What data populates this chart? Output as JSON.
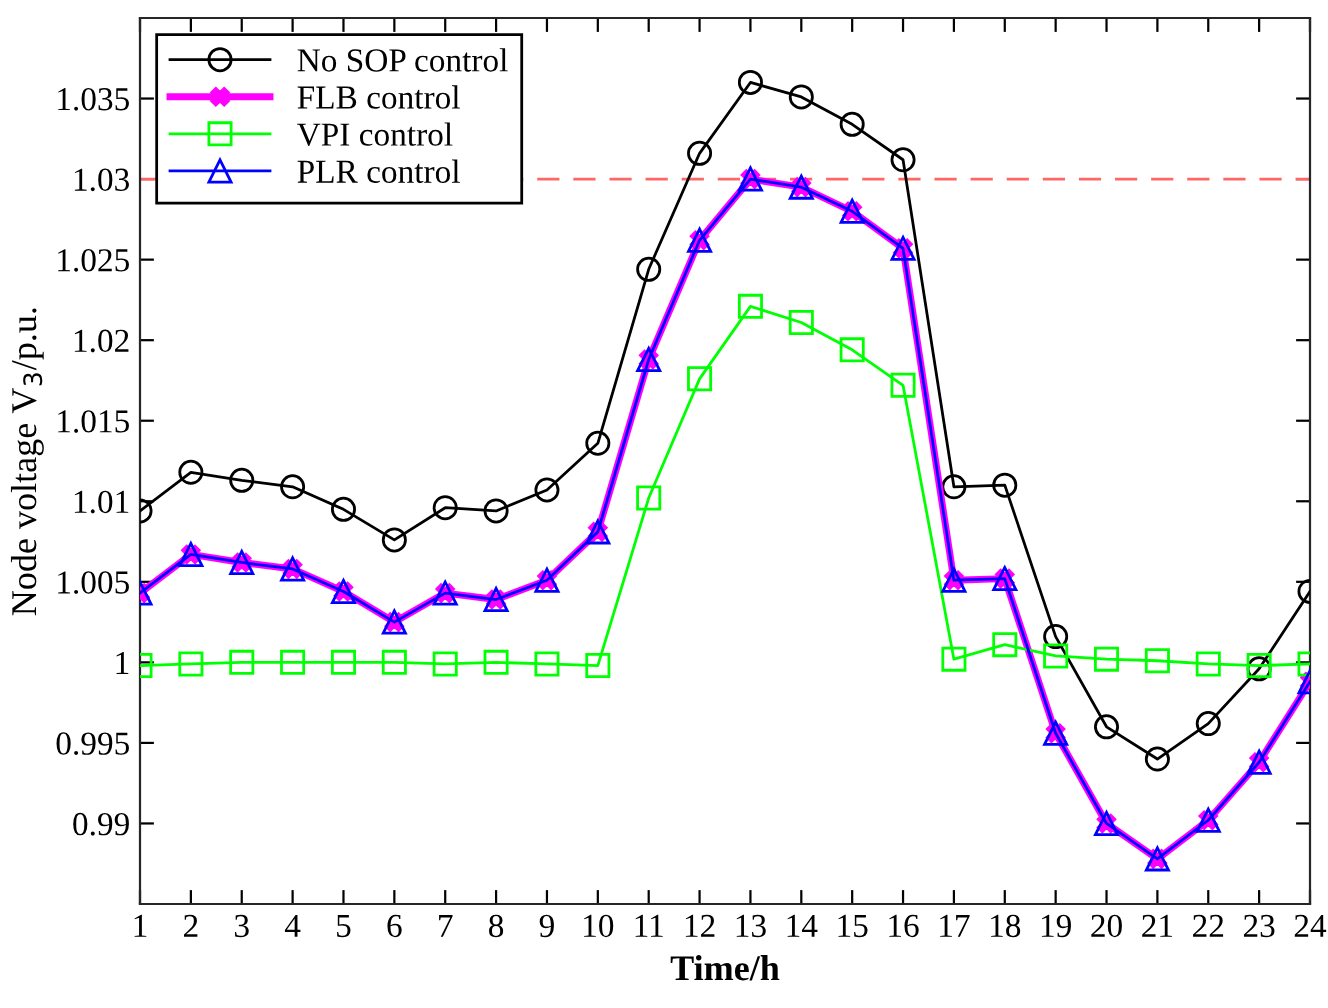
{
  "chart_data": {
    "type": "line",
    "xlabel": "Time/h",
    "ylabel": "Node voltage V$_{3}$/p.u.",
    "x": [
      1,
      2,
      3,
      4,
      5,
      6,
      7,
      8,
      9,
      10,
      11,
      12,
      13,
      14,
      15,
      16,
      17,
      18,
      19,
      20,
      21,
      22,
      23,
      24
    ],
    "xlim": [
      1,
      24
    ],
    "xticks": [
      1,
      2,
      3,
      4,
      5,
      6,
      7,
      8,
      9,
      10,
      11,
      12,
      13,
      14,
      15,
      16,
      17,
      18,
      19,
      20,
      21,
      22,
      23,
      24
    ],
    "ylim": [
      0.985,
      1.04
    ],
    "yticks": [
      0.99,
      0.995,
      1,
      1.005,
      1.01,
      1.015,
      1.02,
      1.025,
      1.03,
      1.035
    ],
    "grid": false,
    "legend": "top left",
    "line_style": "solid",
    "ref_lines": [
      {
        "axis": "y",
        "value": 1.03,
        "color": "#ff6666",
        "line_style": "dashed"
      }
    ],
    "series": [
      {
        "name": "No SOP control",
        "color": "#000000",
        "marker": "circle",
        "values": [
          1.0094,
          1.0118,
          1.0113,
          1.0109,
          1.0095,
          1.0076,
          1.0096,
          1.0094,
          1.0107,
          1.0136,
          1.0244,
          1.0316,
          1.036,
          1.0351,
          1.0334,
          1.0312,
          1.0109,
          1.011,
          1.0016,
          0.996,
          0.994,
          0.9962,
          0.9996,
          1.0044
        ]
      },
      {
        "name": "FLB control",
        "color": "#ff00ff",
        "marker": "cross",
        "values": [
          1.0043,
          1.0067,
          1.0062,
          1.0058,
          1.0044,
          1.0025,
          1.0043,
          1.0039,
          1.0051,
          1.0081,
          1.0188,
          1.0262,
          1.03,
          1.0295,
          1.028,
          1.0257,
          1.0051,
          1.0052,
          0.9956,
          0.99,
          0.9878,
          0.9902,
          0.9938,
          0.9988
        ]
      },
      {
        "name": "VPI control",
        "color": "#00ff00",
        "marker": "square",
        "values": [
          0.9998,
          0.9999,
          1.0,
          1.0,
          1.0,
          1.0,
          0.9999,
          1.0,
          0.9999,
          0.9998,
          1.0102,
          1.0176,
          1.0221,
          1.0211,
          1.0194,
          1.0172,
          1.0002,
          1.0011,
          1.0004,
          1.0002,
          1.0001,
          0.9999,
          0.9998,
          0.9999
        ]
      },
      {
        "name": "PLR control",
        "color": "#0000ff",
        "marker": "triangle",
        "values": [
          1.0043,
          1.0067,
          1.0062,
          1.0058,
          1.0044,
          1.0025,
          1.0043,
          1.0039,
          1.0051,
          1.0081,
          1.0188,
          1.0262,
          1.03,
          1.0295,
          1.028,
          1.0257,
          1.0051,
          1.0052,
          0.9956,
          0.99,
          0.9878,
          0.9902,
          0.9938,
          0.9988
        ]
      }
    ]
  }
}
